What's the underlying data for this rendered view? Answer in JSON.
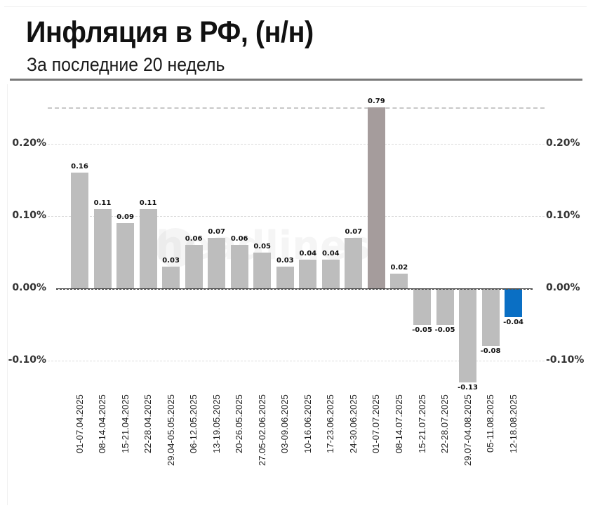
{
  "header": {
    "title": "Инфляция в РФ, (н/н)",
    "subtitle": "За последние 20 недель"
  },
  "watermark": "headlines",
  "colors": {
    "bar_default": "#bdbdbd",
    "bar_highlight_peak": "#a59c9c",
    "bar_latest": "#0a6fc4"
  },
  "axis": {
    "y_ticks": [
      "0.20%",
      "0.10%",
      "0.00%",
      "-0.10%"
    ],
    "y_tick_values": [
      0.2,
      0.1,
      0.0,
      -0.1
    ]
  },
  "chart_data": {
    "type": "bar",
    "title": "Инфляция в РФ, (н/н)",
    "subtitle": "За последние 20 недель",
    "xlabel": "",
    "ylabel": "",
    "ylim": [
      -0.15,
      0.25
    ],
    "grid": true,
    "y_axis_both_sides": true,
    "note": "Bar 01-07.07.2025 (0.79) is clipped at the top of the axis",
    "categories": [
      "01-07.04.2025",
      "08-14.04.2025",
      "15-21.04.2025",
      "22-28.04.2025",
      "29.04-05.05.2025",
      "06-12.05.2025",
      "13-19.05.2025",
      "20-26.05.2025",
      "27.05-02.06.2025",
      "03-09.06.2025",
      "10-16.06.2025",
      "17-23.06.2025",
      "24-30.06.2025",
      "01-07.07.2025",
      "08-14.07.2025",
      "15-21.07.2025",
      "22-28.07.2025",
      "29.07-04.08.2025",
      "05-11.08.2025",
      "12-18.08.2025"
    ],
    "values": [
      0.16,
      0.11,
      0.09,
      0.11,
      0.03,
      0.06,
      0.07,
      0.06,
      0.05,
      0.03,
      0.04,
      0.04,
      0.07,
      0.79,
      0.02,
      -0.05,
      -0.05,
      -0.13,
      -0.08,
      -0.04
    ],
    "labels": [
      "0.16",
      "0.11",
      "0.09",
      "0.11",
      "0.03",
      "0.06",
      "0.07",
      "0.06",
      "0.05",
      "0.03",
      "0.04",
      "0.04",
      "0.07",
      "0.79",
      "0.02",
      "-0.05",
      "-0.05",
      "-0.13",
      "-0.08",
      "-0.04"
    ]
  }
}
